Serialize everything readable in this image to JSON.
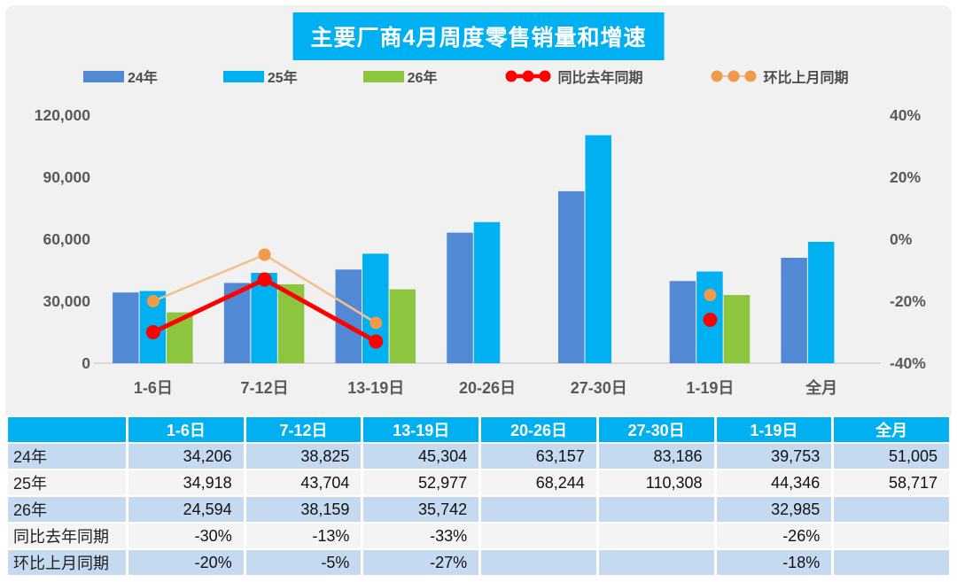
{
  "title": {
    "text": "主要厂商4月周度零售销量和增速",
    "bg_color": "#00B0F0",
    "text_color": "#FFFFFF"
  },
  "legend": [
    {
      "label": "24年",
      "type": "swatch",
      "color": "#5289D5"
    },
    {
      "label": "25年",
      "type": "swatch",
      "color": "#00B0F0"
    },
    {
      "label": "26年",
      "type": "swatch",
      "color": "#8CC63F"
    },
    {
      "label": "同比去年同期",
      "type": "line",
      "color": "#FE0000",
      "marker_color": "#FE0000"
    },
    {
      "label": "环比上月同期",
      "type": "line",
      "color": "#F6BE8C",
      "marker_color": "#EE9B4C"
    }
  ],
  "chart_data": {
    "type": "bar",
    "subtype": "combo-bar-line",
    "title": "主要厂商4月周度零售销量和增速",
    "categories": [
      "1-6日",
      "7-12日",
      "13-19日",
      "20-26日",
      "27-30日",
      "1-19日",
      "全月"
    ],
    "series": [
      {
        "name": "24年",
        "type": "bar",
        "color": "#5289D5",
        "values": [
          34206,
          38825,
          45304,
          63157,
          83186,
          39753,
          51005
        ]
      },
      {
        "name": "25年",
        "type": "bar",
        "color": "#00B0F0",
        "values": [
          34918,
          43704,
          52977,
          68244,
          110308,
          44346,
          58717
        ]
      },
      {
        "name": "26年",
        "type": "bar",
        "color": "#8CC63F",
        "values": [
          24594,
          38159,
          35742,
          null,
          null,
          32985,
          null
        ]
      },
      {
        "name": "同比去年同期",
        "type": "line",
        "axis": "right",
        "color": "#FE0000",
        "marker_color": "#FE0000",
        "values": [
          -30,
          -13,
          -33,
          null,
          null,
          -26,
          null
        ]
      },
      {
        "name": "环比上月同期",
        "type": "line",
        "axis": "right",
        "color": "#F6BE8C",
        "marker_color": "#EE9B4C",
        "values": [
          -20,
          -5,
          -27,
          null,
          null,
          -18,
          null
        ]
      }
    ],
    "left_axis": {
      "min": 0,
      "max": 120000,
      "tick_values": [
        120000,
        90000,
        60000,
        30000,
        0
      ],
      "ticks": [
        "120,000",
        "90,000",
        "60,000",
        "30,000",
        "0"
      ]
    },
    "right_axis": {
      "min": -40,
      "max": 40,
      "unit": "%",
      "tick_values": [
        40,
        20,
        0,
        -20,
        -40
      ],
      "ticks": [
        "40%",
        "20%",
        "0%",
        "-20%",
        "-40%"
      ]
    },
    "grid": false,
    "legend_position": "top"
  },
  "table": {
    "header": [
      "",
      "1-6日",
      "7-12日",
      "13-19日",
      "20-26日",
      "27-30日",
      "1-19日",
      "全月"
    ],
    "rows": [
      {
        "label": "24年",
        "shade": true,
        "cells": [
          "34,206",
          "38,825",
          "45,304",
          "63,157",
          "83,186",
          "39,753",
          "51,005"
        ]
      },
      {
        "label": "25年",
        "shade": false,
        "cells": [
          "34,918",
          "43,704",
          "52,977",
          "68,244",
          "110,308",
          "44,346",
          "58,717"
        ]
      },
      {
        "label": "26年",
        "shade": true,
        "cells": [
          "24,594",
          "38,159",
          "35,742",
          "",
          "",
          "32,985",
          ""
        ]
      },
      {
        "label": "同比去年同期",
        "shade": false,
        "cells": [
          "-30%",
          "-13%",
          "-33%",
          "",
          "",
          "-26%",
          ""
        ]
      },
      {
        "label": "环比上月同期",
        "shade": true,
        "cells": [
          "-20%",
          "-5%",
          "-27%",
          "",
          "",
          "-18%",
          ""
        ]
      }
    ],
    "header_bg": "#00B0F0",
    "shade_row_bg": "#C5D9F0",
    "plain_row_bg": "#F4F4F4"
  }
}
